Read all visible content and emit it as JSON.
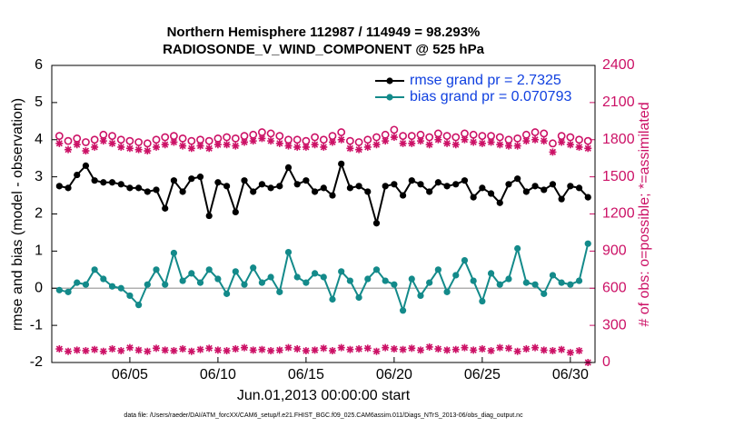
{
  "chart_data": {
    "type": "line",
    "title": "Northern Hemisphere 112987 / 114949 = 98.293%",
    "subtitle": "RADIOSONDE_V_WIND_COMPONENT @ 525 hPa",
    "xlabel": "Jun.01,2013 00:00:00 start",
    "ylabel": "rmse and bias (model - observation)",
    "y2label": "# of obs: o=possible; *=assimilated",
    "footnote": "data file: /Users/raeder/DAI/ATM_forcXX/CAM6_setup/f.e21.FHIST_BGC.f09_025.CAM6assim.011/Diags_NTrS_2013-06/obs_diag_output.nc",
    "x": [
      0,
      0.5,
      1,
      1.5,
      2,
      2.5,
      3,
      3.5,
      4,
      4.5,
      5,
      5.5,
      6,
      6.5,
      7,
      7.5,
      8,
      8.5,
      9,
      9.5,
      10,
      10.5,
      11,
      11.5,
      12,
      12.5,
      13,
      13.5,
      14,
      14.5,
      15,
      15.5,
      16,
      16.5,
      17,
      17.5,
      18,
      18.5,
      19,
      19.5,
      20,
      20.5,
      21,
      21.5,
      22,
      22.5,
      23,
      23.5,
      24,
      24.5,
      25,
      25.5,
      26,
      26.5,
      27,
      27.5,
      28,
      28.5,
      29,
      29.5,
      30
    ],
    "xlim": [
      -0.43,
      30.4
    ],
    "xticks": [
      {
        "value": 4,
        "label": "06/05"
      },
      {
        "value": 9,
        "label": "06/10"
      },
      {
        "value": 14,
        "label": "06/15"
      },
      {
        "value": 19,
        "label": "06/20"
      },
      {
        "value": 24,
        "label": "06/25"
      },
      {
        "value": 29,
        "label": "06/30"
      }
    ],
    "ylim": [
      -2,
      6
    ],
    "yticks": [
      -2,
      -1,
      0,
      1,
      2,
      3,
      4,
      5,
      6
    ],
    "y2lim": [
      0,
      2400
    ],
    "y2ticks": [
      0,
      300,
      600,
      900,
      1200,
      1500,
      1800,
      2100,
      2400
    ],
    "legend": "upper right",
    "series": [
      {
        "name": "rmse grand pr = 2.7325",
        "color": "#000000",
        "marker": "dot",
        "values": [
          2.75,
          2.7,
          3.05,
          3.3,
          2.9,
          2.85,
          2.85,
          2.8,
          2.7,
          2.7,
          2.6,
          2.65,
          2.15,
          2.9,
          2.6,
          2.95,
          3.0,
          1.95,
          2.85,
          2.75,
          2.05,
          2.9,
          2.6,
          2.8,
          2.7,
          2.75,
          3.25,
          2.8,
          2.9,
          2.6,
          2.7,
          2.5,
          3.35,
          2.7,
          2.75,
          2.6,
          1.75,
          2.75,
          2.8,
          2.5,
          2.9,
          2.8,
          2.6,
          2.85,
          2.75,
          2.8,
          2.9,
          2.45,
          2.7,
          2.55,
          2.3,
          2.8,
          2.95,
          2.6,
          2.75,
          2.65,
          2.8,
          2.4,
          2.75,
          2.7,
          2.45
        ]
      },
      {
        "name": "bias grand pr = 0.070793",
        "color": "#138a8a",
        "marker": "dot",
        "values": [
          -0.05,
          -0.1,
          0.15,
          0.1,
          0.5,
          0.25,
          0.05,
          0.0,
          -0.2,
          -0.45,
          0.1,
          0.5,
          0.1,
          0.95,
          0.2,
          0.4,
          0.15,
          0.5,
          0.25,
          -0.15,
          0.45,
          0.1,
          0.55,
          0.15,
          0.3,
          -0.1,
          0.97,
          0.3,
          0.15,
          0.4,
          0.3,
          -0.3,
          0.45,
          0.2,
          -0.25,
          0.25,
          0.5,
          0.2,
          0.1,
          -0.6,
          0.25,
          -0.2,
          0.15,
          0.5,
          -0.1,
          0.35,
          0.75,
          0.2,
          -0.35,
          0.4,
          0.1,
          0.25,
          1.07,
          0.15,
          0.1,
          -0.15,
          0.35,
          0.15,
          0.1,
          0.2,
          1.2
        ]
      },
      {
        "color": "#cc1166",
        "marker": "circle",
        "axis": "y2",
        "values": [
          1830,
          1790,
          1810,
          1780,
          1800,
          1840,
          1830,
          1800,
          1790,
          1780,
          1770,
          1800,
          1820,
          1830,
          1810,
          1790,
          1800,
          1790,
          1810,
          1820,
          1810,
          1830,
          1840,
          1860,
          1850,
          1830,
          1800,
          1800,
          1790,
          1820,
          1800,
          1830,
          1860,
          1790,
          1780,
          1800,
          1820,
          1840,
          1880,
          1830,
          1830,
          1840,
          1820,
          1850,
          1830,
          1820,
          1850,
          1840,
          1830,
          1830,
          1820,
          1800,
          1810,
          1840,
          1860,
          1850,
          1770,
          1830,
          1820,
          1800,
          1790
        ]
      },
      {
        "color": "#cc1166",
        "marker": "star",
        "axis": "y2",
        "values": [
          1770,
          1720,
          1760,
          1710,
          1740,
          1790,
          1770,
          1740,
          1730,
          1720,
          1710,
          1740,
          1760,
          1780,
          1750,
          1730,
          1750,
          1730,
          1760,
          1760,
          1750,
          1780,
          1790,
          1810,
          1790,
          1770,
          1750,
          1740,
          1740,
          1760,
          1740,
          1780,
          1800,
          1730,
          1720,
          1740,
          1760,
          1790,
          1820,
          1770,
          1770,
          1790,
          1760,
          1800,
          1770,
          1760,
          1800,
          1780,
          1770,
          1780,
          1760,
          1750,
          1750,
          1790,
          1800,
          1790,
          1700,
          1780,
          1760,
          1740,
          1730
        ]
      },
      {
        "color": "#cc1166",
        "marker": "star",
        "axis": "y2",
        "values": [
          110,
          90,
          100,
          95,
          105,
          90,
          110,
          95,
          120,
          100,
          90,
          115,
          100,
          95,
          110,
          90,
          105,
          115,
          100,
          95,
          110,
          120,
          100,
          105,
          95,
          100,
          120,
          110,
          95,
          100,
          115,
          95,
          120,
          105,
          110,
          115,
          90,
          120,
          110,
          105,
          115,
          100,
          125,
          110,
          100,
          105,
          120,
          100,
          110,
          95,
          120,
          115,
          90,
          110,
          120,
          100,
          95,
          105,
          80,
          95,
          0
        ]
      }
    ]
  }
}
